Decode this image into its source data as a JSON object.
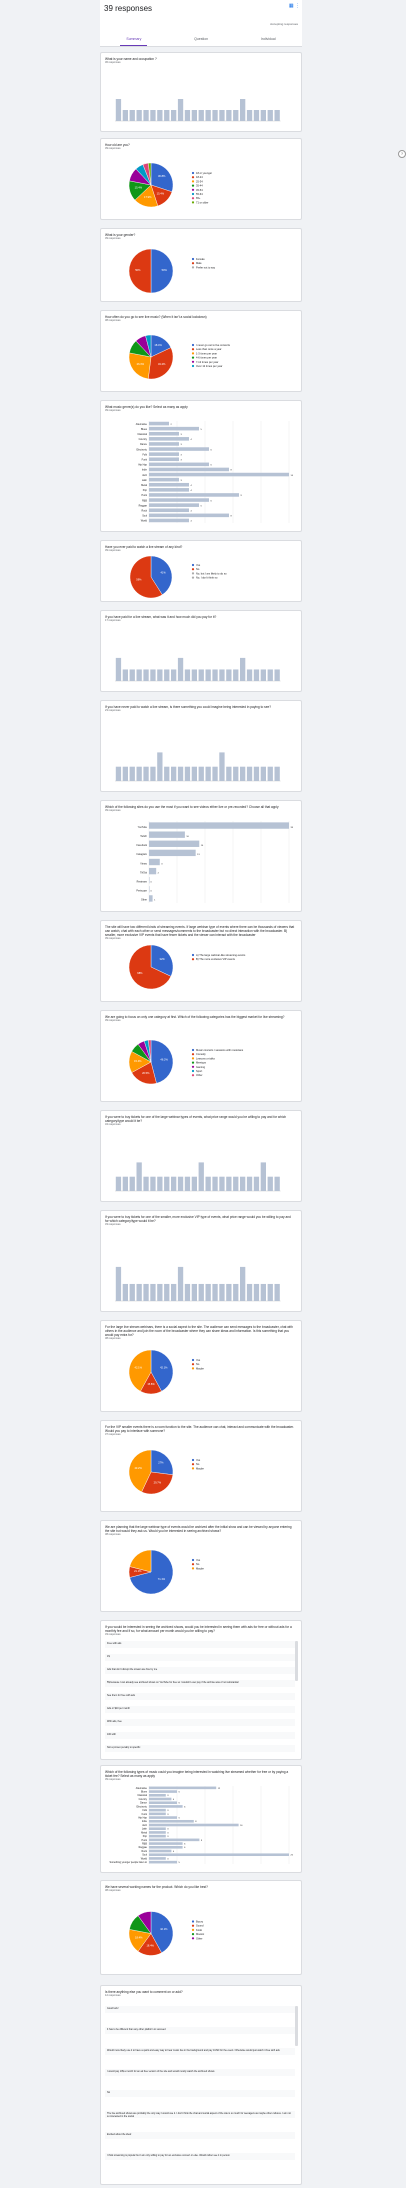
{
  "header": {
    "title": "39 responses",
    "accepting": "Accepting responses"
  },
  "tabs": [
    "Summary",
    "Question",
    "Individual"
  ],
  "questions": [
    {
      "title": "What is your name and occupation ?",
      "count": "36 responses",
      "type": "bar"
    },
    {
      "title": "How old are you?",
      "count": "39 responses",
      "type": "pie",
      "legend": [
        "18 or younger",
        "18-24",
        "25-34",
        "35-44",
        "45-54",
        "55-64",
        "65+",
        "71 or older"
      ],
      "slices": [
        0.3,
        0.15,
        0.18,
        0.15,
        0.1,
        0.06,
        0.04,
        0.02
      ],
      "colors": [
        "#3366cc",
        "#dc3912",
        "#ff9900",
        "#109618",
        "#990099",
        "#0099c6",
        "#dd4477",
        "#66aa00"
      ],
      "labels": [
        "30.8%",
        "15.4%",
        "17.9%",
        "15.4%"
      ]
    },
    {
      "title": "What is your gender?",
      "count": "39 responses",
      "type": "pie",
      "legend": [
        "Female",
        "Male",
        "Prefer not to say"
      ],
      "slices": [
        0.5,
        0.5
      ],
      "colors": [
        "#3366cc",
        "#dc3912"
      ],
      "labels": [
        "50%",
        "50%"
      ]
    },
    {
      "title": "How often do you go to see live music? (When it isn't a social lockdown)",
      "count": "38 responses",
      "type": "pie",
      "legend": [
        "I never go out to live concerts",
        "Less than once a year",
        "1-3 times per year",
        "4-6 times per year",
        "7-12 times per year",
        "Over 12 times per year"
      ],
      "slices": [
        0.18,
        0.34,
        0.26,
        0.1,
        0.08,
        0.04
      ],
      "colors": [
        "#3366cc",
        "#dc3912",
        "#ff9900",
        "#109618",
        "#990099",
        "#0099c6"
      ],
      "labels": [
        "18.4%",
        "34.2%",
        "26.3%"
      ]
    },
    {
      "title": "What music genre(s) do you like? Select as many as apply",
      "count": "39 responses",
      "type": "hbar",
      "categories": [
        "Alternative",
        "Blues",
        "Classical",
        "Country",
        "Dance",
        "Electronic",
        "Folk",
        "Funk",
        "Hip Hop",
        "Indie",
        "Jazz",
        "Latin",
        "Metal",
        "Pop",
        "Punk",
        "R&B",
        "Reggae",
        "Rock",
        "Soul",
        "World"
      ],
      "values": [
        2,
        5,
        3,
        4,
        3,
        6,
        3,
        3,
        6,
        8,
        14,
        3,
        4,
        4,
        9,
        6,
        5,
        4,
        8,
        4
      ]
    },
    {
      "title": "Have you ever paid to watch a live stream of any kind?",
      "count": "39 responses",
      "type": "pie",
      "legend": [
        "Yes",
        "No",
        "No, but I am likely to do so",
        "No, I don't think so"
      ],
      "slices": [
        0.41,
        0.59
      ],
      "colors": [
        "#3366cc",
        "#dc3912"
      ],
      "labels": [
        "41%",
        "59%"
      ]
    },
    {
      "title": "If you have paid for a live stream, what was it and how much did you pay for it?",
      "count": "17 responses",
      "type": "bar"
    },
    {
      "title": "If you have never paid to watch a live stream, is there something you could imagine being interested in paying to see?",
      "count": "23 responses",
      "type": "bar"
    },
    {
      "title": "Which of the following sites do you use the most if you want to see videos either live or pre-recorded? Choose all that apply",
      "count": "39 responses",
      "type": "hbar",
      "categories": [
        "YouTube",
        "Twitch",
        "Facebook",
        "Instagram",
        "Vimeo",
        "TikTok",
        "Restream",
        "Periscope",
        "Other"
      ],
      "values": [
        39,
        10,
        14,
        13,
        3,
        2,
        0,
        0,
        1
      ]
    },
    {
      "title": "The site will have two different kinds of streaming events. If large webinar type of events where there can be thousands of viewers that can watch, chat with each other or send messages/comments to the broadcaster but no direct interaction with the broadcaster. B) smaller, more exclusive VIP events that have fewer tickets and the viewer can interact with the broadcaster",
      "count": "39 responses",
      "type": "pie",
      "legend": [
        "A) The large webinar-like streaming events",
        "B) The more exclusive VIP events"
      ],
      "slices": [
        0.32,
        0.68
      ],
      "colors": [
        "#3366cc",
        "#dc3912"
      ],
      "labels": [
        "32%",
        "68%"
      ]
    },
    {
      "title": "We are going to focus on only one category at first. Which of the following categories has the biggest market for live streaming?",
      "count": "39 responses",
      "type": "pie",
      "legend": [
        "Music concerts / sessions with musicians",
        "Comedy",
        "Lessons or talks",
        "Meetups",
        "Gaming",
        "Sport",
        "Other"
      ],
      "slices": [
        0.46,
        0.21,
        0.16,
        0.07,
        0.05,
        0.03,
        0.02
      ],
      "colors": [
        "#3366cc",
        "#dc3912",
        "#ff9900",
        "#109618",
        "#990099",
        "#0099c6",
        "#dd4477"
      ],
      "labels": [
        "46.2%",
        "20.5%",
        "15.4%"
      ]
    },
    {
      "title": "If you were to buy tickets for one of the large webinar types of events, what price range would you be willing to pay and for which category/type would it be?",
      "count": "34 responses",
      "type": "bar"
    },
    {
      "title": "If you were to buy tickets for one of the smaller, more exclusive VIP type of events, what price range would you be willing to pay and for which category/type would it be?",
      "count": "33 responses",
      "type": "bar"
    },
    {
      "title": "For the large live stream webinars, there is a social aspect to the site. The audience can send messages to the broadcaster, chat with others in the audience and join the room of the broadcaster where they can share ideas and information. Is this something that you would pay extra for?",
      "count": "38 responses",
      "type": "pie",
      "legend": [
        "Yes",
        "No",
        "Maybe"
      ],
      "slices": [
        0.42,
        0.16,
        0.42
      ],
      "colors": [
        "#3366cc",
        "#dc3912",
        "#ff9900"
      ],
      "labels": [
        "42.1%",
        "15.8%",
        "42.1%"
      ]
    },
    {
      "title": "For the VIP smaller events there is a room function to the site. The audience can chat, interact and communicate with the broadcaster. Would you pay to interface with someone?",
      "count": "37 responses",
      "type": "pie",
      "legend": [
        "Yes",
        "No",
        "Maybe"
      ],
      "slices": [
        0.27,
        0.3,
        0.43
      ],
      "colors": [
        "#3366cc",
        "#dc3912",
        "#ff9900"
      ],
      "labels": [
        "27%",
        "29.7%",
        "43.2%"
      ]
    },
    {
      "title": "We are planning that the large webinar type of events would be archived after the initial show and can be viewed by anyone entering the site but would they ask us. Would you be interested in seeing archived shows?",
      "count": "38 responses",
      "type": "pie",
      "legend": [
        "Yes",
        "No",
        "Maybe"
      ],
      "slices": [
        0.71,
        0.08,
        0.21
      ],
      "colors": [
        "#3366cc",
        "#dc3912",
        "#ff9900"
      ],
      "labels": [
        "71.1%",
        "21.1%"
      ]
    },
    {
      "title": "If you would be interested in seeing the archived shows, would you be interested in seeing them with ads for free or without ads for a monthly fee and if so, for what amount per month would you be willing to pay?",
      "count": "33 responses",
      "type": "text",
      "rows": [
        "Free with ads",
        "1$",
        "Ads that don't disrupt the stream are fine by me",
        "5$ because I can already see archived shows on YouTube for free so I wouldn't ever pay if the archive was of not substantial",
        "See them for free with ads",
        "Ads or $10 per month",
        "With ads, free",
        "100 with",
        "Not a proven penalty to specific"
      ]
    },
    {
      "title": "Which of the following types of music could you imagine being interested in watching live streamed whether for free or by paying a ticket fee? Select as many as apply",
      "count": "39 responses",
      "type": "hbar",
      "categories": [
        "Alternative",
        "Blues",
        "Classical",
        "Country",
        "Dance",
        "Electronic",
        "Folk",
        "Funk",
        "Hip Hop",
        "Indie",
        "Jazz",
        "Latin",
        "Metal",
        "Pop",
        "Punk",
        "R&B",
        "Reggae",
        "Rock",
        "Soul",
        "World",
        "Something younger people listen to"
      ],
      "values": [
        12,
        5,
        3,
        4,
        5,
        6,
        3,
        3,
        5,
        8,
        16,
        3,
        3,
        3,
        9,
        6,
        6,
        4,
        25,
        3,
        5
      ]
    },
    {
      "title": "We have several working names for the product. Which do you like best?",
      "count": "38 responses",
      "type": "pie",
      "legend": [
        "Buzzy",
        "Sound",
        "Kodo",
        "Moosic",
        "Other"
      ],
      "slices": [
        0.42,
        0.18,
        0.18,
        0.12,
        0.1
      ],
      "colors": [
        "#3366cc",
        "#dc3912",
        "#ff9900",
        "#109618",
        "#990099"
      ],
      "labels": [
        "42.1%",
        "18.4%",
        "18.4%"
      ]
    },
    {
      "title": "Is there anything else you want to comment on or add?",
      "count": "12 responses",
      "type": "text",
      "rows": [
        "Good luck!",
        "It has to be different than any other platform to succeed",
        "Would more likely use it to have a quick and easy way to hear music live in the background and pay 1USD for the event. Otherwise would just watch it free with ads",
        "I would pay 10$ a month for an ad free version of the site and would mostly watch the archived shows",
        "No",
        "The live archived shows are probably the only way I would use it. I don't think the chat and social aspect of the site is so much for teenagers as maybe other cultures. I am not so interested in the social",
        "Excited about the idea!",
        "I think streaming is popular but I am only willing to pay for an exclusive concert or else. Would rather see it in person"
      ]
    }
  ]
}
